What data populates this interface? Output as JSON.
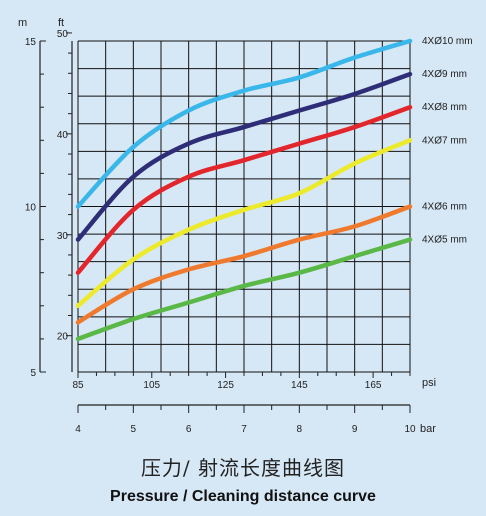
{
  "chart_data": {
    "type": "line",
    "title_cn": "压力/ 射流长度曲线图",
    "title_en": "Pressure / Cleaning distance curve",
    "x_primary": {
      "unit": "psi",
      "ticks": [
        85,
        105,
        125,
        145,
        165
      ],
      "range": [
        85,
        175
      ]
    },
    "x_secondary": {
      "unit": "bar",
      "ticks": [
        4,
        5,
        6,
        7,
        8,
        9,
        10
      ],
      "range": [
        4,
        10
      ]
    },
    "y_left": {
      "unit": "m",
      "ticks": [
        15,
        10,
        5
      ],
      "range": [
        5,
        15
      ]
    },
    "y_right": {
      "unit": "ft",
      "ticks": [
        50,
        40,
        30,
        20
      ],
      "range": [
        16.4,
        49.2
      ]
    },
    "grid": true,
    "legend_placement": "right",
    "x": [
      4,
      5,
      6,
      7,
      8,
      9,
      10
    ],
    "series": [
      {
        "name": "4XØ10 mm",
        "color": "#39b7ea",
        "values": [
          10.0,
          11.8,
          12.9,
          13.5,
          13.9,
          14.5,
          15.0
        ]
      },
      {
        "name": "4XØ9 mm",
        "color": "#2e2d78",
        "values": [
          9.0,
          10.9,
          11.9,
          12.4,
          12.9,
          13.4,
          14.0
        ]
      },
      {
        "name": "4XØ8 mm",
        "color": "#e3262b",
        "values": [
          8.0,
          9.9,
          10.9,
          11.4,
          11.9,
          12.4,
          13.0
        ]
      },
      {
        "name": "4XØ7 mm",
        "color": "#ecea2a",
        "values": [
          7.0,
          8.4,
          9.3,
          9.9,
          10.4,
          11.3,
          12.0
        ]
      },
      {
        "name": "4XØ6 mm",
        "color": "#ef7a2e",
        "values": [
          6.5,
          7.5,
          8.1,
          8.5,
          9.0,
          9.4,
          10.0
        ]
      },
      {
        "name": "4XØ5 mm",
        "color": "#5ab846",
        "values": [
          6.0,
          6.6,
          7.1,
          7.6,
          8.0,
          8.5,
          9.0
        ]
      }
    ]
  }
}
